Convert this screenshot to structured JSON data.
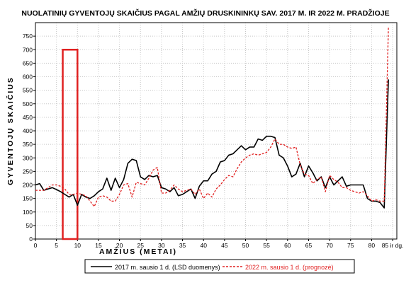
{
  "chart_data": {
    "type": "line",
    "title": "NUOLATINIŲ GYVENTOJŲ SKAIČIUS PAGAL AMŽIŲ DRUSKININKŲ SAV. 2017 M. IR 2022 M. PRADŽIOJE",
    "xlabel": "AMŽIUS (METAI)",
    "ylabel": "GYVENTOJŲ SKAIČIUS",
    "xlim": [
      0,
      86
    ],
    "ylim": [
      0,
      800
    ],
    "x_ticks": [
      "0",
      "5",
      "10",
      "15",
      "20",
      "25",
      "30",
      "35",
      "40",
      "45",
      "50",
      "55",
      "60",
      "65",
      "70",
      "75",
      "80",
      "85 ir dg."
    ],
    "y_ticks": [
      0,
      50,
      100,
      150,
      200,
      250,
      300,
      350,
      400,
      450,
      500,
      550,
      600,
      650,
      700,
      750
    ],
    "grid": true,
    "legend_position": "bottom",
    "highlight_box": {
      "x_range": [
        6.5,
        10
      ],
      "y_range": [
        0,
        700
      ],
      "color": "#e02020"
    },
    "series": [
      {
        "name": "2017 m. sausio 1 d. (LSD duomenys)",
        "color": "#000000",
        "style": "solid",
        "values": [
          200,
          205,
          180,
          185,
          190,
          183,
          175,
          165,
          155,
          165,
          125,
          165,
          155,
          150,
          160,
          175,
          185,
          225,
          180,
          225,
          190,
          220,
          280,
          295,
          290,
          230,
          220,
          235,
          230,
          235,
          190,
          185,
          175,
          190,
          160,
          165,
          175,
          185,
          150,
          195,
          215,
          215,
          240,
          250,
          285,
          290,
          310,
          315,
          330,
          345,
          330,
          340,
          340,
          370,
          365,
          380,
          380,
          375,
          310,
          300,
          270,
          230,
          240,
          280,
          230,
          270,
          245,
          215,
          230,
          190,
          230,
          200,
          215,
          230,
          195,
          200,
          200,
          200,
          200,
          150,
          140,
          140,
          135,
          115,
          590
        ]
      },
      {
        "name": "2022 m. sausio 1 d. (prognozė)",
        "color": "#e02020",
        "style": "dashed",
        "values": [
          180,
          180,
          180,
          190,
          200,
          200,
          195,
          185,
          165,
          165,
          170,
          165,
          160,
          140,
          120,
          155,
          160,
          155,
          140,
          140,
          165,
          200,
          205,
          155,
          210,
          205,
          200,
          225,
          255,
          265,
          170,
          170,
          180,
          200,
          185,
          175,
          180,
          185,
          165,
          185,
          150,
          170,
          155,
          185,
          200,
          220,
          235,
          230,
          260,
          285,
          300,
          310,
          315,
          310,
          315,
          320,
          340,
          370,
          350,
          350,
          340,
          335,
          340,
          275,
          240,
          235,
          205,
          220,
          230,
          175,
          235,
          220,
          210,
          190,
          190,
          180,
          175,
          170,
          175,
          160,
          140,
          145,
          140,
          140,
          785
        ]
      }
    ]
  },
  "legend": {
    "item_2017": "2017 m. sausio 1 d. (LSD duomenys)",
    "item_2022": "2022 m. sausio 1 d. (prognozė)"
  }
}
